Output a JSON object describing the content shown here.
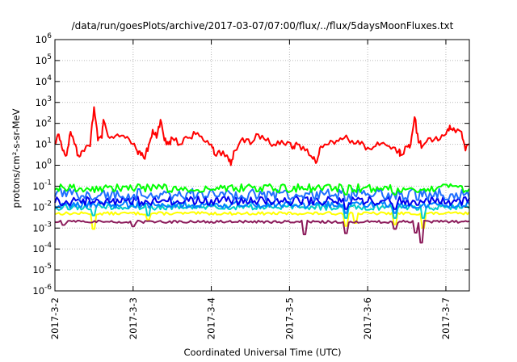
{
  "chart_data": {
    "type": "line",
    "title": "/data/run/goesPlots/archive/2017-03-07/07:00/flux/../flux/5daysMoonFluxes.txt",
    "xlabel": "Coordinated Universal Time (UTC)",
    "ylabel": "protons/cm²-s-sr-MeV",
    "yscale": "log",
    "ylim": [
      1e-06,
      1000000.0
    ],
    "xlim": [
      0,
      5.3
    ],
    "y_ticks": [
      -6,
      -5,
      -4,
      -3,
      -2,
      -1,
      0,
      1,
      2,
      3,
      4,
      5,
      6
    ],
    "x_ticks": [
      {
        "x": 0,
        "label": "2017-3-2"
      },
      {
        "x": 1,
        "label": "2017-3-3"
      },
      {
        "x": 2,
        "label": "2017-3-4"
      },
      {
        "x": 3,
        "label": "2017-3-5"
      },
      {
        "x": 4,
        "label": "2017-3-6"
      },
      {
        "x": 5,
        "label": "2017-3-7"
      }
    ],
    "grid": true,
    "series": [
      {
        "color": "#ffff00",
        "base": 0.005,
        "sd": 0.07,
        "dips": [
          [
            0.5,
            0.18
          ],
          [
            1.2,
            0.5
          ],
          [
            3.72,
            0.25
          ],
          [
            3.85,
            0.35
          ],
          [
            4.35,
            0.3
          ],
          [
            4.7,
            0.2
          ]
        ]
      },
      {
        "color": "#00cccc",
        "base": 0.01,
        "sd": 0.14,
        "dips": [
          [
            0.5,
            0.4
          ],
          [
            1.2,
            0.4
          ],
          [
            3.72,
            0.3
          ],
          [
            4.35,
            0.3
          ],
          [
            4.7,
            0.3
          ]
        ]
      },
      {
        "color": "#0080ff",
        "base": 0.013,
        "sd": 0.16,
        "dips": [
          [
            3.72,
            0.4
          ],
          [
            4.35,
            0.4
          ]
        ]
      },
      {
        "color": "#0000ee",
        "base": 0.02,
        "sd": 0.22,
        "dips": [
          [
            3.72,
            0.4
          ],
          [
            4.35,
            0.4
          ]
        ]
      },
      {
        "color": "#1f6fff",
        "base": 0.04,
        "sd": 0.28,
        "dips": [
          [
            3.72,
            0.5
          ]
        ]
      },
      {
        "color": "#00ff00",
        "base": 0.08,
        "sd": 0.2,
        "dips": [
          [
            3.72,
            0.5
          ],
          [
            4.35,
            0.5
          ]
        ]
      },
      {
        "color": "#8b1a5a",
        "base": 0.002,
        "sd": 0.06,
        "dips": [
          [
            0.1,
            0.7
          ],
          [
            1.0,
            0.6
          ],
          [
            3.2,
            0.25
          ],
          [
            3.72,
            0.28
          ],
          [
            4.35,
            0.45
          ],
          [
            4.62,
            0.3
          ],
          [
            4.68,
            0.1
          ]
        ]
      },
      {
        "color": "#ff0000",
        "base": 10,
        "sd": 0.35,
        "dips": [],
        "points": [
          [
            0,
            10
          ],
          [
            0.05,
            30
          ],
          [
            0.1,
            5
          ],
          [
            0.15,
            3
          ],
          [
            0.2,
            40
          ],
          [
            0.25,
            10
          ],
          [
            0.3,
            3
          ],
          [
            0.35,
            5
          ],
          [
            0.45,
            8
          ],
          [
            0.5,
            600
          ],
          [
            0.55,
            15
          ],
          [
            0.6,
            20
          ],
          [
            0.62,
            150
          ],
          [
            0.7,
            20
          ],
          [
            0.8,
            30
          ],
          [
            0.9,
            20
          ],
          [
            1.0,
            10
          ],
          [
            1.05,
            5
          ],
          [
            1.1,
            3
          ],
          [
            1.15,
            2
          ],
          [
            1.2,
            10
          ],
          [
            1.25,
            50
          ],
          [
            1.3,
            20
          ],
          [
            1.35,
            150
          ],
          [
            1.4,
            15
          ],
          [
            1.45,
            10
          ],
          [
            1.5,
            20
          ],
          [
            1.6,
            10
          ],
          [
            1.7,
            20
          ],
          [
            1.8,
            30
          ],
          [
            1.9,
            15
          ],
          [
            2.0,
            10
          ],
          [
            2.05,
            3
          ],
          [
            2.1,
            5
          ],
          [
            2.2,
            3
          ],
          [
            2.25,
            1
          ],
          [
            2.3,
            5
          ],
          [
            2.4,
            20
          ],
          [
            2.5,
            10
          ],
          [
            2.6,
            30
          ],
          [
            2.7,
            15
          ],
          [
            2.8,
            10
          ],
          [
            2.9,
            15
          ],
          [
            3.0,
            12
          ],
          [
            3.05,
            8
          ],
          [
            3.1,
            10
          ],
          [
            3.2,
            5
          ],
          [
            3.3,
            2
          ],
          [
            3.35,
            1.5
          ],
          [
            3.4,
            8
          ],
          [
            3.5,
            10
          ],
          [
            3.6,
            15
          ],
          [
            3.7,
            20
          ],
          [
            3.8,
            15
          ],
          [
            3.9,
            10
          ],
          [
            4.0,
            7
          ],
          [
            4.1,
            8
          ],
          [
            4.2,
            12
          ],
          [
            4.3,
            6
          ],
          [
            4.4,
            5
          ],
          [
            4.42,
            3
          ],
          [
            4.5,
            8
          ],
          [
            4.55,
            10
          ],
          [
            4.6,
            200
          ],
          [
            4.65,
            12
          ],
          [
            4.7,
            8
          ],
          [
            4.8,
            20
          ],
          [
            4.9,
            15
          ],
          [
            5.0,
            30
          ],
          [
            5.05,
            80
          ],
          [
            5.1,
            60
          ],
          [
            5.2,
            40
          ],
          [
            5.25,
            5
          ],
          [
            5.3,
            10
          ]
        ]
      }
    ]
  }
}
